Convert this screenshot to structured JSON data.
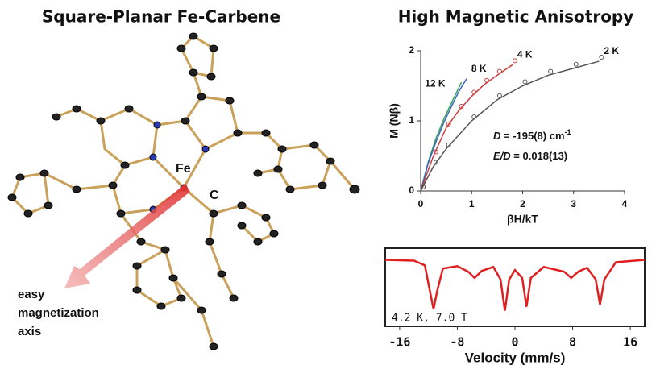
{
  "left_title": "Square-Planar Fe-Carbene",
  "right_title": "High Magnetic Anisotropy",
  "molecule": {
    "atom_labels": [
      "Fe",
      "C"
    ],
    "axis_label": [
      "easy",
      "magnetization",
      "axis"
    ]
  },
  "chart_data": [
    {
      "type": "line",
      "xlabel": "βH/kT",
      "ylabel": "M (Nβ)",
      "xlim": [
        0,
        4
      ],
      "ylim": [
        0,
        2
      ],
      "xticks": [
        0,
        1,
        2,
        3,
        4
      ],
      "yticks": [
        0,
        1,
        2
      ],
      "series": [
        {
          "name": "12 K",
          "color": "#3aa35a",
          "x": [
            0,
            0.15,
            0.3,
            0.45,
            0.6,
            0.8
          ],
          "values": [
            0,
            0.42,
            0.75,
            1.02,
            1.25,
            1.55
          ]
        },
        {
          "name": "8 K",
          "color": "#3a66c4",
          "x": [
            0,
            0.15,
            0.3,
            0.45,
            0.6,
            0.75,
            0.9
          ],
          "values": [
            0,
            0.4,
            0.7,
            0.97,
            1.2,
            1.42,
            1.6
          ]
        },
        {
          "name": "4 K",
          "color": "#c83c3c",
          "markers": true,
          "x": [
            0,
            0.25,
            0.5,
            0.75,
            1,
            1.25,
            1.5,
            1.8
          ],
          "values": [
            0,
            0.5,
            0.9,
            1.15,
            1.35,
            1.52,
            1.65,
            1.8
          ]
        },
        {
          "name": "2 K",
          "color": "#555555",
          "markers": true,
          "x": [
            0,
            0.25,
            0.5,
            1,
            1.5,
            2,
            2.5,
            3,
            3.5
          ],
          "values": [
            0,
            0.35,
            0.6,
            1,
            1.3,
            1.5,
            1.65,
            1.75,
            1.85
          ]
        }
      ],
      "annotations": [
        {
          "parts": [
            "D",
            " = -195(8) cm",
            "-1"
          ]
        },
        {
          "parts": [
            "E/D",
            " = 0.018(13)"
          ]
        }
      ]
    },
    {
      "type": "line",
      "xlabel": "Velocity (mm/s)",
      "annotation": "4.2 K, 7.0 T",
      "xlim": [
        -18,
        18
      ],
      "ylim": [
        0,
        1
      ],
      "xticks": [
        -16,
        -8,
        0,
        8,
        16
      ],
      "series": [
        {
          "color": "#e02020",
          "x": [
            -18,
            -14,
            -12.5,
            -11.8,
            -11.3,
            -10.8,
            -10,
            -8,
            -6.5,
            -5.6,
            -4.6,
            -3,
            -2,
            -1.4,
            -0.8,
            0,
            1,
            1.6,
            2.2,
            4,
            6.8,
            7.8,
            8.8,
            10,
            11.2,
            11.8,
            12.4,
            14,
            18
          ],
          "values": [
            0.85,
            0.84,
            0.78,
            0.45,
            0.22,
            0.45,
            0.74,
            0.77,
            0.7,
            0.62,
            0.71,
            0.76,
            0.6,
            0.2,
            0.6,
            0.72,
            0.62,
            0.25,
            0.62,
            0.76,
            0.7,
            0.62,
            0.7,
            0.75,
            0.6,
            0.28,
            0.6,
            0.82,
            0.85
          ]
        }
      ]
    }
  ]
}
